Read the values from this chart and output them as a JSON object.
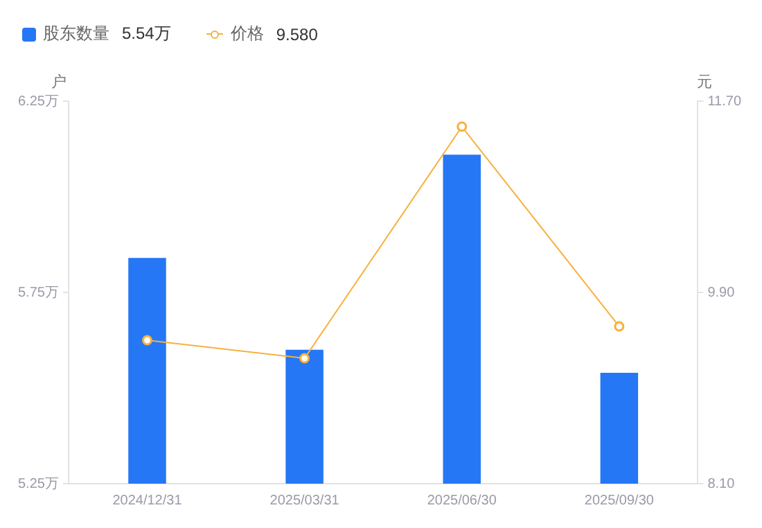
{
  "chart_data": {
    "type": "bar",
    "categories": [
      "2024/12/31",
      "2025/03/31",
      "2025/06/30",
      "2025/09/30"
    ],
    "series": [
      {
        "name": "股东数量",
        "color": "#2577f5",
        "values": [
          5.84,
          5.6,
          6.11,
          5.54
        ]
      },
      {
        "name": "价格",
        "type": "line",
        "axis": "y2",
        "color": "#f7b13c",
        "values": [
          9.45,
          9.28,
          11.46,
          9.58
        ]
      }
    ],
    "ylabel": "户",
    "y2label": "元",
    "ylim": [
      5.25,
      6.25
    ],
    "yticks": [
      {
        "value": 5.25,
        "label": "5.25万"
      },
      {
        "value": 5.75,
        "label": "5.75万"
      },
      {
        "value": 6.25,
        "label": "6.25万"
      }
    ],
    "y2lim": [
      8.1,
      11.7
    ],
    "y2ticks": [
      {
        "value": 8.1,
        "label": "8.10"
      },
      {
        "value": 9.9,
        "label": "9.90"
      },
      {
        "value": 11.7,
        "label": "11.70"
      }
    ],
    "annotations": [
      "5.54万",
      "9.580"
    ],
    "legend": "top left",
    "grid": false,
    "marker": "circle",
    "line_style": "solid"
  }
}
